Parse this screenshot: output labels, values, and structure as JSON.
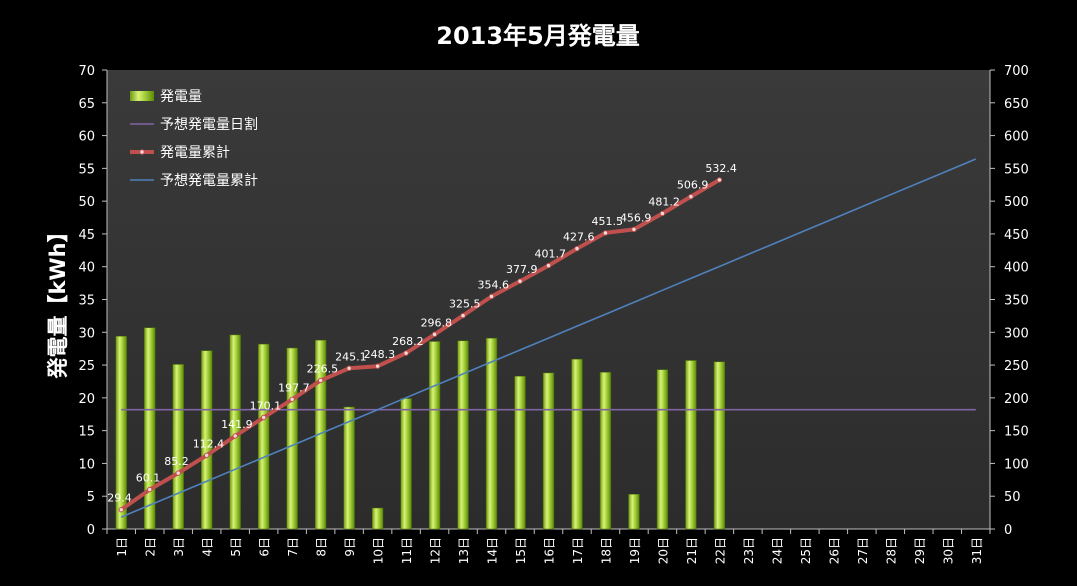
{
  "chart_data": {
    "type": "bar",
    "title": "2013年5月発電量",
    "ylabel": "発電量【kWh】",
    "ylim": [
      0,
      70
    ],
    "y_ticks": [
      0,
      5,
      10,
      15,
      20,
      25,
      30,
      35,
      40,
      45,
      50,
      55,
      60,
      65,
      70
    ],
    "y2lim": [
      0,
      700
    ],
    "y2_ticks": [
      0,
      50,
      100,
      150,
      200,
      250,
      300,
      350,
      400,
      450,
      500,
      550,
      600,
      650,
      700
    ],
    "grid": false,
    "legend_position": "top-left",
    "categories": [
      "1日",
      "2日",
      "3日",
      "4日",
      "5日",
      "6日",
      "7日",
      "8日",
      "9日",
      "10日",
      "11日",
      "12日",
      "13日",
      "14日",
      "15日",
      "16日",
      "17日",
      "18日",
      "19日",
      "20日",
      "21日",
      "22日",
      "23日",
      "24日",
      "25日",
      "26日",
      "27日",
      "28日",
      "29日",
      "30日",
      "31日"
    ],
    "series": [
      {
        "name": "発電量",
        "type": "bar",
        "axis": "left",
        "color": "#9acd32",
        "values": [
          29.4,
          30.7,
          25.1,
          27.2,
          29.6,
          28.2,
          27.6,
          28.8,
          18.6,
          3.2,
          19.9,
          28.6,
          28.7,
          29.1,
          23.3,
          23.8,
          25.9,
          23.9,
          5.3,
          24.3,
          25.7,
          25.5,
          null,
          null,
          null,
          null,
          null,
          null,
          null,
          null,
          null
        ]
      },
      {
        "name": "予想発電量日割",
        "type": "line",
        "axis": "left",
        "color": "#8064a2",
        "values": [
          18.2,
          18.2,
          18.2,
          18.2,
          18.2,
          18.2,
          18.2,
          18.2,
          18.2,
          18.2,
          18.2,
          18.2,
          18.2,
          18.2,
          18.2,
          18.2,
          18.2,
          18.2,
          18.2,
          18.2,
          18.2,
          18.2,
          18.2,
          18.2,
          18.2,
          18.2,
          18.2,
          18.2,
          18.2,
          18.2,
          18.2
        ]
      },
      {
        "name": "発電量累計",
        "type": "line",
        "axis": "right",
        "color": "#c0504d",
        "values": [
          29.4,
          60.1,
          85.2,
          112.4,
          141.9,
          170.1,
          197.7,
          226.5,
          245.1,
          248.3,
          268.2,
          296.8,
          325.5,
          354.6,
          377.9,
          401.7,
          427.6,
          451.5,
          456.9,
          481.2,
          506.9,
          532.4,
          null,
          null,
          null,
          null,
          null,
          null,
          null,
          null,
          null
        ],
        "data_labels": [
          "29.4",
          "60.1",
          "85.2",
          "112.4",
          "141.9",
          "170.1",
          "197.7",
          "226.5",
          "245.1",
          "248.3",
          "268.2",
          "296.8",
          "325.5",
          "354.6",
          "377.9",
          "401.7",
          "427.6",
          "451.5",
          "456.9",
          "481.2",
          "506.9",
          "532.4"
        ]
      },
      {
        "name": "予想発電量累計",
        "type": "line",
        "axis": "right",
        "color": "#4f81bd",
        "values": [
          18.2,
          36.4,
          54.6,
          72.8,
          91.0,
          109.2,
          127.4,
          145.6,
          163.8,
          182.0,
          200.2,
          218.4,
          236.6,
          254.8,
          273.0,
          291.2,
          309.4,
          327.6,
          345.8,
          364.0,
          382.2,
          400.4,
          418.6,
          436.8,
          455.0,
          473.2,
          491.4,
          509.6,
          527.8,
          546.0,
          564.2
        ]
      }
    ]
  }
}
